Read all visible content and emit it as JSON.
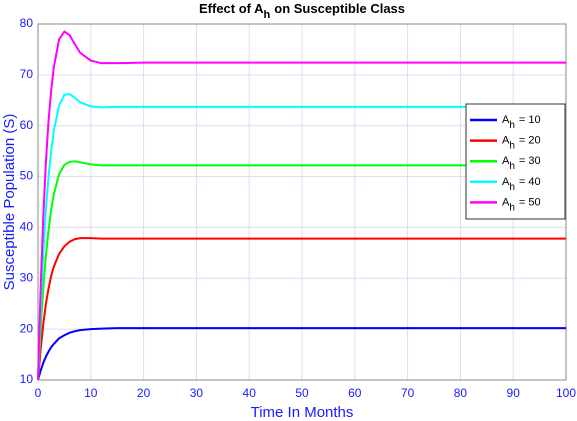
{
  "chart_data": {
    "type": "line",
    "title": [
      "Effect of A",
      "h",
      "on Susceptible Class"
    ],
    "x_label": "Time In Months",
    "y_label": "Susceptible Population (S)",
    "x": [
      0,
      0.5,
      1,
      1.5,
      2,
      2.5,
      3,
      4,
      5,
      6,
      7,
      8,
      10,
      12,
      15,
      20,
      30,
      40,
      50,
      60,
      70,
      80,
      90,
      100
    ],
    "series": [
      {
        "name": [
          "A",
          "h",
          "= 10"
        ],
        "color": "#0000ff",
        "values": [
          10,
          11.85,
          13.36,
          14.6,
          15.6,
          16.45,
          17.1,
          18.2,
          18.8,
          19.3,
          19.6,
          19.8,
          20.0,
          20.1,
          20.2,
          20.2,
          20.2,
          20.2,
          20.2,
          20.2,
          20.2,
          20.2,
          20.2,
          20.2
        ]
      },
      {
        "name": [
          "A",
          "h",
          "= 20"
        ],
        "color": "#ff0000",
        "values": [
          10,
          16,
          21,
          25,
          28,
          30.5,
          32.3,
          34.8,
          36.3,
          37.2,
          37.7,
          37.9,
          37.9,
          37.8,
          37.8,
          37.8,
          37.8,
          37.8,
          37.8,
          37.8,
          37.8,
          37.8,
          37.8,
          37.8
        ]
      },
      {
        "name": [
          "A",
          "h",
          "= 30"
        ],
        "color": "#00ff00",
        "values": [
          10,
          20,
          28,
          34.5,
          39.5,
          43.5,
          46.5,
          50.5,
          52.3,
          52.9,
          53.0,
          52.8,
          52.4,
          52.2,
          52.2,
          52.2,
          52.2,
          52.2,
          52.2,
          52.2,
          52.2,
          52.2,
          52.2,
          52.2
        ]
      },
      {
        "name": [
          "A",
          "h",
          "= 40"
        ],
        "color": "#00ffff",
        "values": [
          10,
          24,
          35,
          43.5,
          50,
          55,
          59,
          64,
          66.1,
          66.2,
          65.5,
          64.6,
          63.8,
          63.6,
          63.7,
          63.7,
          63.7,
          63.7,
          63.7,
          63.7,
          63.7,
          63.7,
          63.7,
          63.7
        ]
      },
      {
        "name": [
          "A",
          "h",
          "= 50"
        ],
        "color": "#ff00ff",
        "values": [
          10,
          28,
          42,
          53,
          61,
          67,
          71.5,
          77,
          78.5,
          77.8,
          76,
          74.3,
          72.8,
          72.3,
          72.3,
          72.4,
          72.4,
          72.4,
          72.4,
          72.4,
          72.4,
          72.4,
          72.4,
          72.4
        ]
      }
    ],
    "xlim": [
      0,
      100
    ],
    "xticks": [
      0,
      10,
      20,
      30,
      40,
      50,
      60,
      70,
      80,
      90,
      100
    ],
    "ylim": [
      10,
      80
    ],
    "yticks": [
      10,
      20,
      30,
      40,
      50,
      60,
      70,
      80
    ],
    "grid": true,
    "legend": "northeast"
  }
}
